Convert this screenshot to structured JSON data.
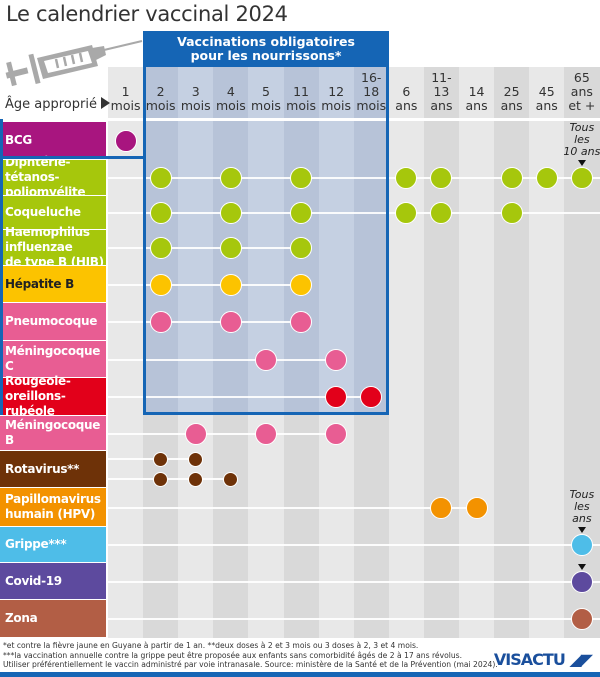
{
  "title": "Le calendrier vaccinal 2024",
  "age_label": "Âge approprié",
  "mandatory_header": "Vaccinations obligatoires\npour les nourrissons*",
  "colors": {
    "accent_blue": "#1565b5",
    "col_light": "#e8e8e8",
    "col_dark": "#d9d9d9",
    "col_oblig_light": "#c5d0e2",
    "col_oblig_dark": "#b7c3d8"
  },
  "chart_data": {
    "type": "table",
    "title": "Le calendrier vaccinal 2024",
    "columns": [
      "1\nmois",
      "2\nmois",
      "3\nmois",
      "4\nmois",
      "5\nmois",
      "11\nmois",
      "12\nmois",
      "16-18\nmois",
      "6\nans",
      "11-13\nans",
      "14\nans",
      "25\nans",
      "45\nans",
      "65\nans\net +"
    ],
    "mandatory_columns": [
      1,
      2,
      3,
      4,
      5,
      6,
      7
    ],
    "rows": [
      {
        "name": "BCG",
        "color": "#a8157f",
        "doses": [
          0
        ],
        "mandatory": false
      },
      {
        "name": "Diphtérie-tétanos-\npoliomyélite",
        "color": "#a6c70c",
        "doses": [
          1,
          3,
          5,
          8,
          9,
          11,
          12,
          13
        ],
        "mandatory": true,
        "note": "Tous\nles\n10 ans",
        "note_col": 13
      },
      {
        "name": "Coqueluche",
        "color": "#a6c70c",
        "doses": [
          1,
          3,
          5,
          8,
          9,
          11
        ],
        "mandatory": true
      },
      {
        "name": "Haemophilus\ninfluenzae\nde type B (HIB)",
        "color": "#a6c70c",
        "doses": [
          1,
          3,
          5
        ],
        "mandatory": true
      },
      {
        "name": "Hépatite B",
        "color": "#fcc300",
        "text_color": "#222",
        "doses": [
          1,
          3,
          5
        ],
        "mandatory": true
      },
      {
        "name": "Pneumocoque",
        "color": "#e85d93",
        "doses": [
          1,
          3,
          5
        ],
        "mandatory": true
      },
      {
        "name": "Méningocoque C",
        "color": "#e85d93",
        "doses": [
          4,
          6
        ],
        "mandatory": true
      },
      {
        "name": "Rougeole-\noreillons-rubéole",
        "color": "#e2001a",
        "doses": [
          6,
          7
        ],
        "mandatory": true
      },
      {
        "name": "Méningocoque B",
        "color": "#e85d93",
        "doses": [
          2,
          4,
          6
        ],
        "mandatory": false
      },
      {
        "name": "Rotavirus**",
        "color": "#6e3208",
        "doses_small": [
          [
            1,
            2
          ],
          [
            1,
            2,
            3
          ]
        ],
        "mandatory": false
      },
      {
        "name": "Papillomavirus\nhumain (HPV)",
        "color": "#f39200",
        "doses": [
          9,
          10
        ],
        "mandatory": false
      },
      {
        "name": "Grippe***",
        "color": "#4ebde8",
        "doses": [
          13
        ],
        "mandatory": false,
        "note": "Tous\nles\nans",
        "note_col": 13
      },
      {
        "name": "Covid-19",
        "color": "#5d4a9e",
        "doses": [
          13
        ],
        "mandatory": false,
        "arrow": true
      },
      {
        "name": "Zona",
        "color": "#b25e45",
        "doses": [
          13
        ],
        "mandatory": false
      }
    ]
  },
  "footer": {
    "line1": "*et contre la fièvre jaune en Guyane à partir de 1 an. **deux doses à 2 et 3 mois ou 3 doses à 2, 3 et 4 mois.",
    "line2": "***la vaccination annuelle contre la grippe peut être proposée aux enfants sans comorbidité âgés de 2 à 17 ans révolus.",
    "line3": "Utiliser préférentiellement le vaccin administré par voie intranasale. Source: ministère de la Santé et de la Prévention (mai 2024)."
  },
  "logo": "VISACTU"
}
